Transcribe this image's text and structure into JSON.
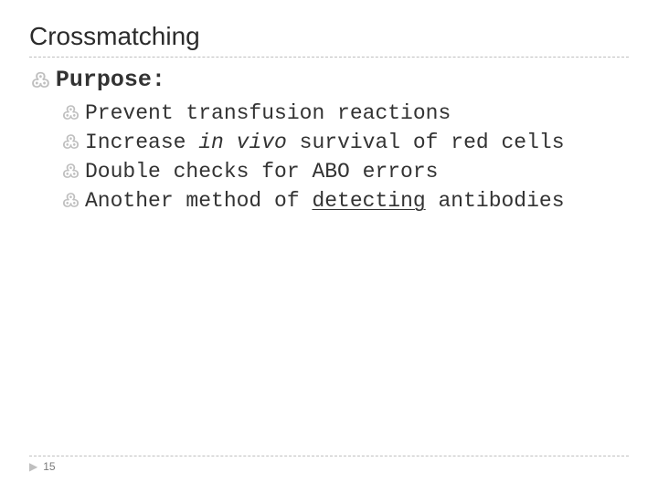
{
  "colors": {
    "background": "#ffffff",
    "title_text": "#2b2b2b",
    "body_text": "#333333",
    "bullet": "#bfbfbf",
    "rule": "#bfbfbf",
    "page_num": "#7a7a7a"
  },
  "fonts": {
    "title_family": "Arial, Helvetica, sans-serif",
    "body_family": "Courier New, Courier, monospace",
    "title_size_pt": 28,
    "lvl1_size_pt": 25,
    "lvl2_size_pt": 23,
    "page_num_size_pt": 12
  },
  "bullet_glyph": "߷",
  "title": "Crossmatching",
  "lvl1": {
    "label": "Purpose:"
  },
  "lvl2": {
    "items": [
      {
        "plain": "Prevent transfusion reactions"
      },
      {
        "pre": "Increase ",
        "italic": "in vivo",
        "post": " survival of red cells"
      },
      {
        "plain": "Double checks for ABO errors"
      },
      {
        "pre": "Another method of ",
        "underline": "detecting",
        "post": " antibodies"
      }
    ]
  },
  "footer": {
    "arrow_glyph": "▶",
    "page_number": "15"
  }
}
